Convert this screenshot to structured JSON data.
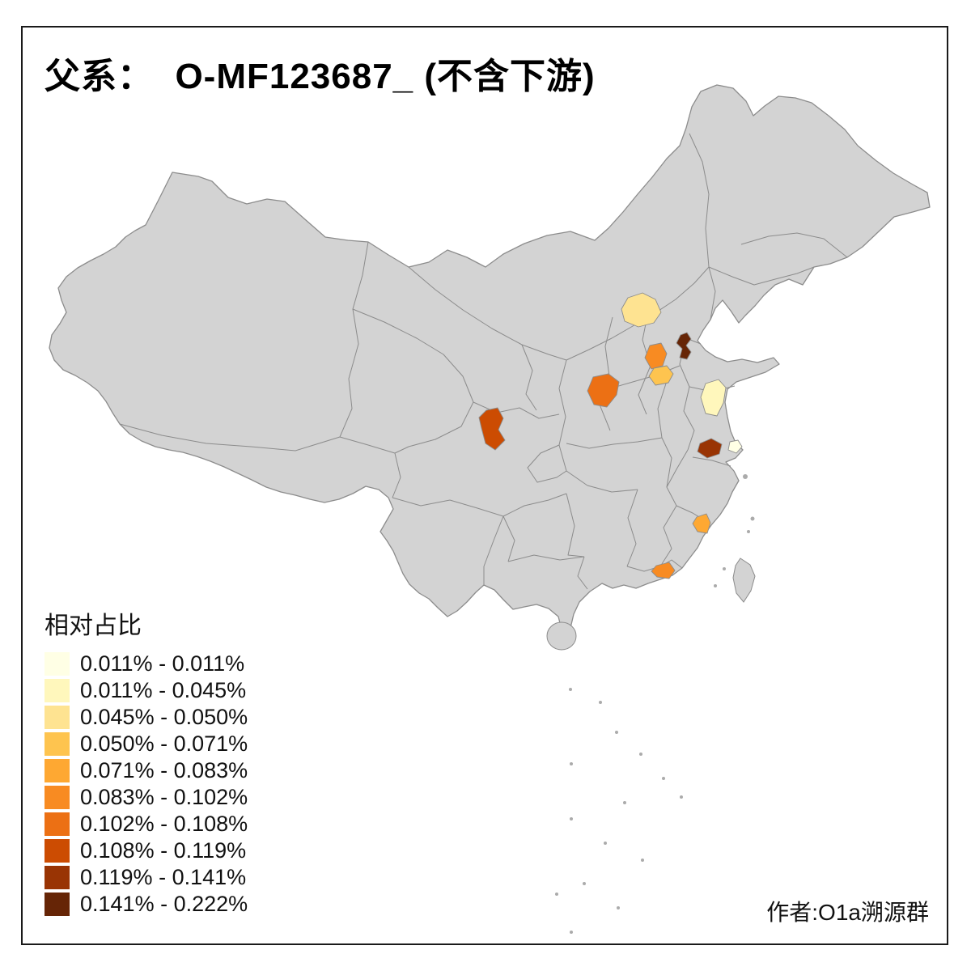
{
  "title": "父系：  O-MF123687_ (不含下游)",
  "legend": {
    "title": "相对占比",
    "entries": [
      {
        "label": "0.011% - 0.011%",
        "color": "#FFFFE5"
      },
      {
        "label": "0.011% - 0.045%",
        "color": "#FFF7BC"
      },
      {
        "label": "0.045% - 0.050%",
        "color": "#FEE391"
      },
      {
        "label": "0.050% - 0.071%",
        "color": "#FEC44F"
      },
      {
        "label": "0.071% - 0.083%",
        "color": "#FEA832"
      },
      {
        "label": "0.083% - 0.102%",
        "color": "#F88B22"
      },
      {
        "label": "0.102% - 0.108%",
        "color": "#EC7014"
      },
      {
        "label": "0.108% - 0.119%",
        "color": "#CC4C02"
      },
      {
        "label": "0.119% - 0.141%",
        "color": "#993404"
      },
      {
        "label": "0.141% - 0.222%",
        "color": "#662506"
      }
    ]
  },
  "attribution": "作者:O1a溯源群",
  "map": {
    "base_fill": "#D3D3D3",
    "border_color": "#8C8C8C",
    "speck_color": "#ABABAB",
    "background": "#FFFFFF",
    "frame_color": "#1A1A1A"
  },
  "chart_data": {
    "type": "choropleth",
    "title": "父系： O-MF123687_ (不含下游)",
    "legend_title": "相对占比",
    "unit": "%",
    "bins": [
      {
        "label": "0.011% - 0.011%",
        "color": "#FFFFE5"
      },
      {
        "label": "0.011% - 0.045%",
        "color": "#FFF7BC"
      },
      {
        "label": "0.045% - 0.050%",
        "color": "#FEE391"
      },
      {
        "label": "0.050% - 0.071%",
        "color": "#FEC44F"
      },
      {
        "label": "0.071% - 0.083%",
        "color": "#FEA832"
      },
      {
        "label": "0.083% - 0.102%",
        "color": "#F88B22"
      },
      {
        "label": "0.102% - 0.108%",
        "color": "#EC7014"
      },
      {
        "label": "0.108% - 0.119%",
        "color": "#CC4C02"
      },
      {
        "label": "0.119% - 0.141%",
        "color": "#993404"
      },
      {
        "label": "0.141% - 0.222%",
        "color": "#662506"
      }
    ],
    "regions": [
      {
        "id": "north-china-pale",
        "approx_area": "north China (around Beijing / central Hebei)",
        "bin": "0.045% - 0.050%",
        "color": "#FEE391"
      },
      {
        "id": "south-hebei-orange",
        "approx_area": "southern Hebei area",
        "bin": "0.083% - 0.102%",
        "color": "#F88B22"
      },
      {
        "id": "northwest-shandong-dark",
        "approx_area": "northwest Shandong area",
        "bin": "0.141% - 0.222%",
        "color": "#662506"
      },
      {
        "id": "north-henan-amber",
        "approx_area": "northern Henan / southwest Shandong junction",
        "bin": "0.050% - 0.071%",
        "color": "#FEC44F"
      },
      {
        "id": "south-shanxi-orange",
        "approx_area": "southern Shanxi area",
        "bin": "0.102% - 0.108%",
        "color": "#EC7014"
      },
      {
        "id": "central-jiangsu-pale",
        "approx_area": "central Jiangsu area",
        "bin": "0.011% - 0.045%",
        "color": "#FFF7BC"
      },
      {
        "id": "central-sichuan-dark",
        "approx_area": "central Sichuan basin area",
        "bin": "0.108% - 0.119%",
        "color": "#CC4C02"
      },
      {
        "id": "shanghai-west-dark",
        "approx_area": "southern Jiangsu / west of Shanghai",
        "bin": "0.119% - 0.141%",
        "color": "#993404"
      },
      {
        "id": "shanghai-east-pale",
        "approx_area": "Shanghai coastal area",
        "bin": "0.011% - 0.011%",
        "color": "#FFFFE5"
      },
      {
        "id": "coastal-fujian-amber",
        "approx_area": "coastal central Fujian",
        "bin": "0.071% - 0.083%",
        "color": "#FEA832"
      },
      {
        "id": "east-guangdong-orange",
        "approx_area": "eastern Guangdong coast",
        "bin": "0.083% - 0.102%",
        "color": "#F88B22"
      }
    ]
  }
}
